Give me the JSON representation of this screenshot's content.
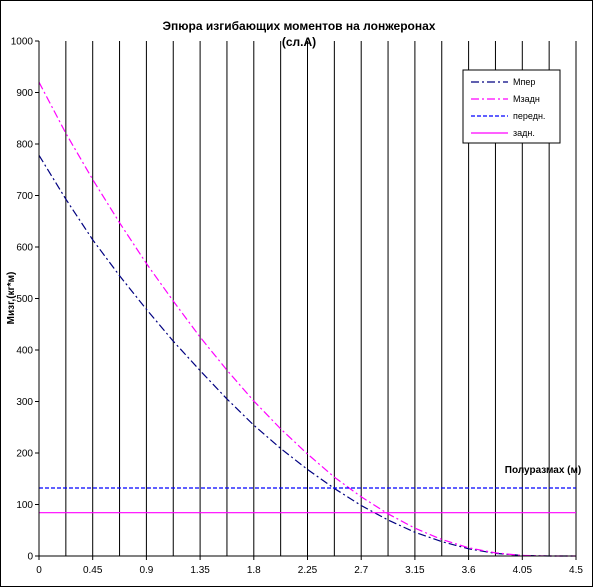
{
  "chart_data": {
    "type": "line",
    "title_line1": "Эпюра изгибающих моментов на лонжеронах",
    "title_line2": "(сл.А)",
    "xlabel": "Полуразмах (м)",
    "ylabel": "Мизг,(кг*м)",
    "xlim": [
      0,
      4.5
    ],
    "ylim": [
      0,
      1000
    ],
    "x_ticks": [
      "0",
      "0.45",
      "0.9",
      "1.35",
      "1.8",
      "2.25",
      "2.7",
      "3.15",
      "3.6",
      "4.05",
      "4.5"
    ],
    "y_ticks": [
      "0",
      "100",
      "200",
      "300",
      "400",
      "500",
      "600",
      "700",
      "800",
      "900",
      "1000"
    ],
    "vertical_gridlines_x": [
      0,
      0.225,
      0.45,
      0.675,
      0.9,
      1.125,
      1.35,
      1.575,
      1.8,
      2.025,
      2.25,
      2.475,
      2.7,
      2.925,
      3.15,
      3.375,
      3.6,
      3.825,
      4.05,
      4.275,
      4.5
    ],
    "x": [
      0,
      0.225,
      0.45,
      0.675,
      0.9,
      1.125,
      1.35,
      1.575,
      1.8,
      2.025,
      2.25,
      2.475,
      2.7,
      2.925,
      3.15,
      3.375,
      3.6,
      3.825,
      4.05,
      4.275,
      4.5
    ],
    "series": [
      {
        "name": "Мпер",
        "color": "#000080",
        "dash": "dashdot",
        "values": [
          778,
          693,
          614,
          544,
          479,
          417,
          360,
          305,
          254,
          209,
          168,
          131,
          98,
          70,
          46,
          28,
          14,
          5,
          1,
          0,
          0
        ]
      },
      {
        "name": "Мзадн",
        "color": "#ff00ff",
        "dash": "dashdot",
        "values": [
          920,
          821,
          731,
          647,
          568,
          495,
          425,
          361,
          301,
          247,
          198,
          153,
          115,
          82,
          54,
          32,
          16,
          6,
          1,
          0,
          0
        ]
      },
      {
        "name": "передн.",
        "color": "#0000ff",
        "dash": "dashed",
        "values": [
          132,
          132,
          132,
          132,
          132,
          132,
          132,
          132,
          132,
          132,
          132,
          132,
          132,
          132,
          132,
          132,
          132,
          132,
          132,
          132,
          132
        ]
      },
      {
        "name": "задн.",
        "color": "#ff00ff",
        "dash": "solid",
        "values": [
          84,
          84,
          84,
          84,
          84,
          84,
          84,
          84,
          84,
          84,
          84,
          84,
          84,
          84,
          84,
          84,
          84,
          84,
          84,
          84,
          84
        ]
      }
    ],
    "legend_position": "top-right",
    "grid": "vertical"
  }
}
